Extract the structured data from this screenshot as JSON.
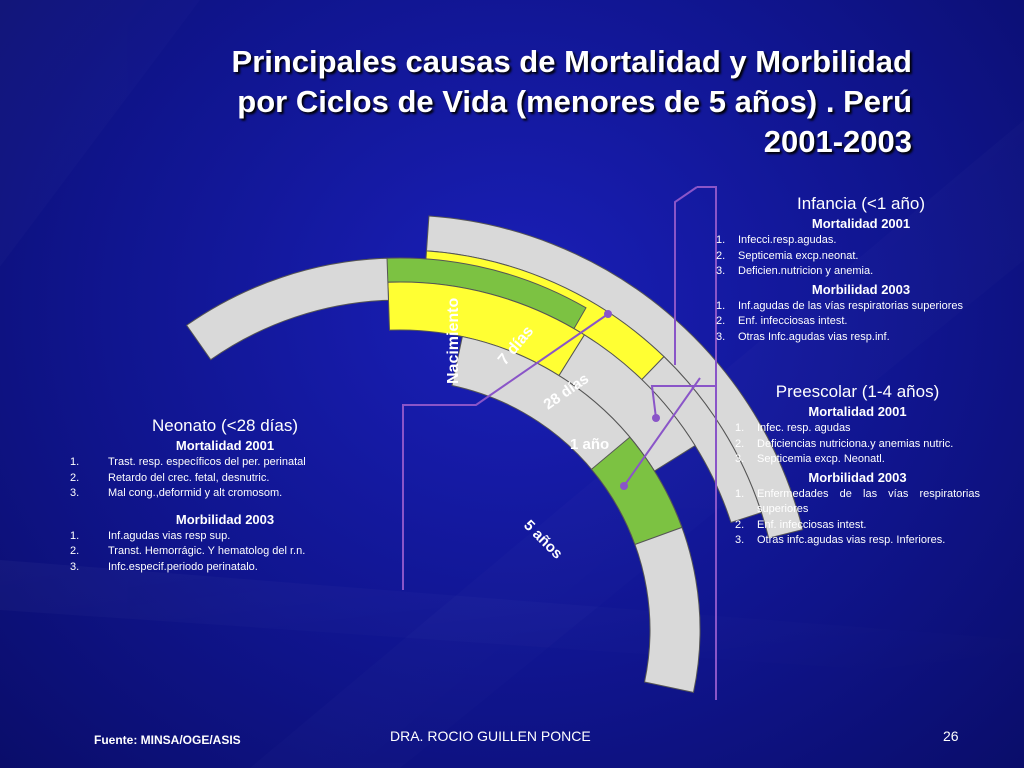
{
  "title": {
    "line1": "Principales causas de Mortalidad y Morbilidad",
    "line2": "por Ciclos de Vida (menores de 5 años) . Perú",
    "line3": "2001-2003"
  },
  "colors": {
    "arc_gray": "#d9d9d9",
    "arc_yellow": "#ffff33",
    "arc_green": "#7cc242",
    "connector": "#8a55c8"
  },
  "stage_labels": {
    "nacimiento": "Nacimiento",
    "siete_dias": "7 días",
    "veintiocho_dias": "28 días",
    "un_ano": "1 año",
    "cinco_anos": "5 años"
  },
  "infancia": {
    "heading": "Infancia (<1 año)",
    "mortalidad_title": "Mortalidad 2001",
    "mortalidad": [
      "Infecci.resp.agudas.",
      "Septicemia excp.neonat.",
      "Deficien.nutricion y anemia."
    ],
    "morbilidad_title": "Morbilidad 2003",
    "morbilidad": [
      "Inf.agudas de las vías respiratorias superiores",
      "Enf. infecciosas intest.",
      "Otras Infc.agudas vias resp.inf."
    ]
  },
  "preescolar": {
    "heading": "Preescolar (1-4 años)",
    "mortalidad_title": "Mortalidad 2001",
    "mortalidad": [
      "Infec. resp. agudas",
      "Deficiencias nutriciona.y anemias nutric.",
      "Septicemia excp. Neonatl."
    ],
    "morbilidad_title": "Morbilidad 2003",
    "morbilidad": [
      "Enfermedades de las vías respiratorias superiores",
      "Enf. infecciosas intest.",
      "Otras infc.agudas vias resp. Inferiores."
    ]
  },
  "neonato": {
    "heading": "Neonato (<28 días)",
    "mortalidad_title": "Mortalidad 2001",
    "mortalidad": [
      "Trast. resp. específicos del per. perinatal",
      "Retardo del crec. fetal, desnutric.",
      "Mal cong.,deformid y alt cromosom."
    ],
    "morbilidad_title": "Morbilidad 2003",
    "morbilidad": [
      "Inf.agudas vias resp sup.",
      "Transt. Hemorrágic. Y hematolog del r.n.",
      "Infc.especif.periodo perinatalo."
    ]
  },
  "footer": {
    "source": "Fuente: MINSA/OGE/ASIS",
    "author": "DRA. ROCIO GUILLEN PONCE",
    "page": "26"
  }
}
